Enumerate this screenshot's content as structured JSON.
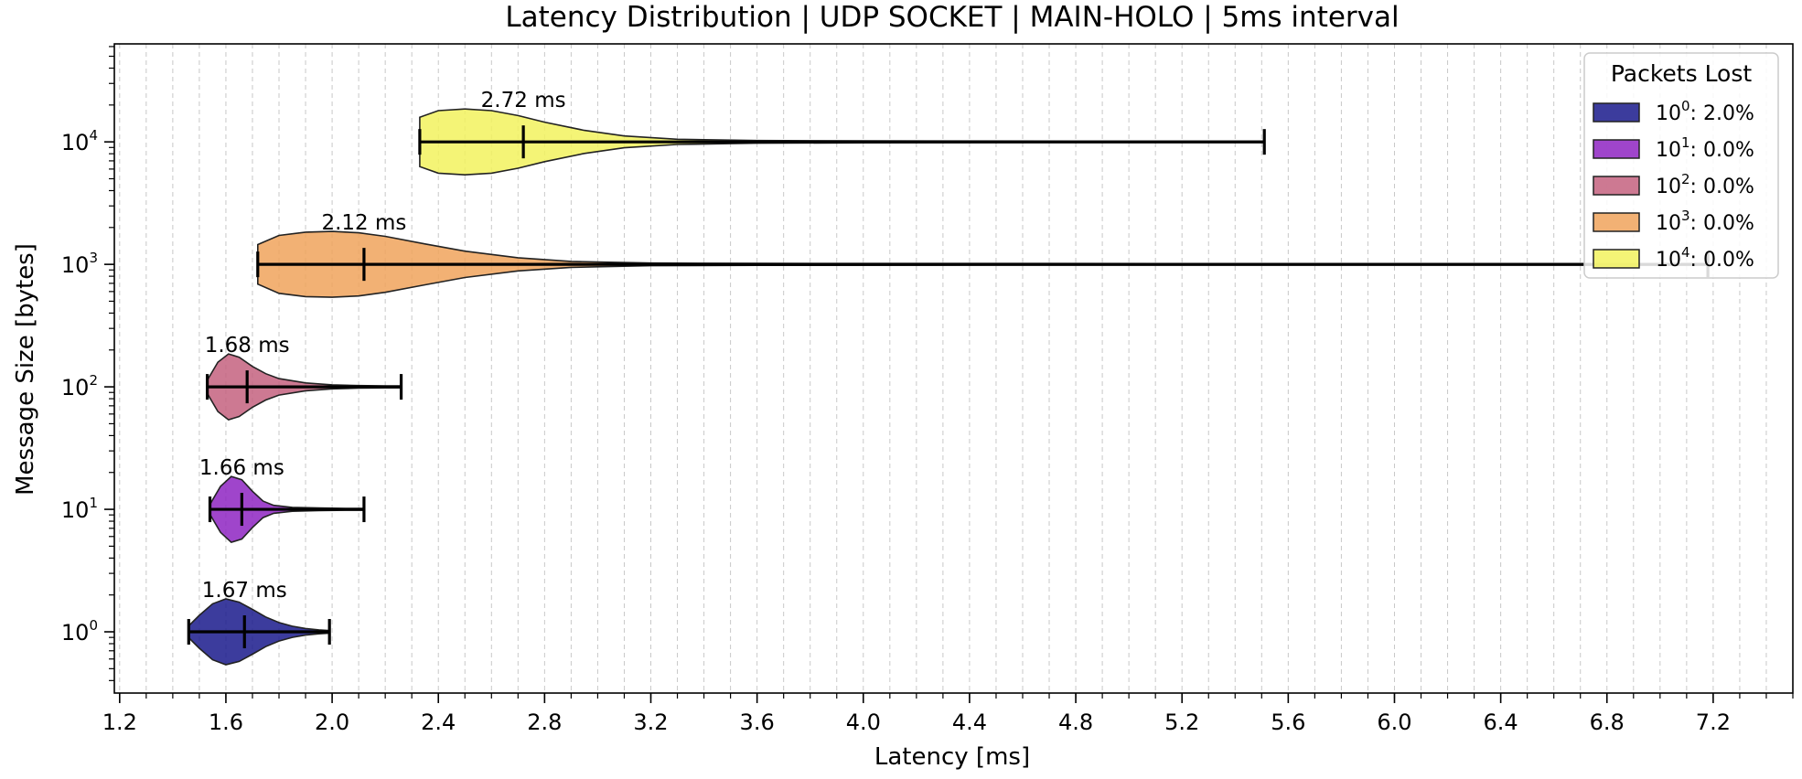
{
  "chart_data": {
    "type": "violin",
    "title": "Latency Distribution | UDP SOCKET | MAIN-HOLO | 5ms interval",
    "xlabel": "Latency [ms]",
    "ylabel": "Message Size [bytes]",
    "xlim": [
      1.18,
      7.5
    ],
    "y_scale": "log",
    "ylim_log10": [
      -0.5,
      4.8
    ],
    "xticks": [
      1.2,
      1.6,
      2.0,
      2.4,
      2.8,
      3.2,
      3.6,
      4.0,
      4.4,
      4.8,
      5.2,
      5.6,
      6.0,
      6.4,
      6.8,
      7.2
    ],
    "xticks_minor_step": 0.1,
    "grid": "vertical-dashed",
    "legend": {
      "title": "Packets Lost",
      "placement": "top-right"
    },
    "series": [
      {
        "size_exp": 0,
        "min": 1.46,
        "max": 1.99,
        "mean": 1.67,
        "mean_label": "1.67 ms",
        "packets_lost": ": 2.0%",
        "color": "#1a1a8c",
        "density_x": [
          1.46,
          1.5,
          1.55,
          1.6,
          1.65,
          1.7,
          1.75,
          1.8,
          1.85,
          1.9,
          1.95,
          1.99
        ],
        "density_w": [
          0.18,
          0.5,
          0.85,
          1.0,
          0.9,
          0.68,
          0.45,
          0.28,
          0.17,
          0.1,
          0.06,
          0.04
        ]
      },
      {
        "size_exp": 1,
        "min": 1.54,
        "max": 2.12,
        "mean": 1.66,
        "mean_label": "1.66 ms",
        "packets_lost": ": 0.0%",
        "color": "#8e24c2",
        "density_x": [
          1.54,
          1.58,
          1.62,
          1.66,
          1.7,
          1.74,
          1.78,
          1.85,
          1.95,
          2.05,
          2.12
        ],
        "density_w": [
          0.15,
          0.7,
          1.0,
          0.9,
          0.55,
          0.25,
          0.12,
          0.06,
          0.04,
          0.03,
          0.03
        ]
      },
      {
        "size_exp": 2,
        "min": 1.53,
        "max": 2.26,
        "mean": 1.68,
        "mean_label": "1.68 ms",
        "packets_lost": ": 0.0%",
        "color": "#c4627f",
        "density_x": [
          1.53,
          1.57,
          1.61,
          1.65,
          1.7,
          1.75,
          1.8,
          1.9,
          2.0,
          2.1,
          2.2,
          2.26
        ],
        "density_w": [
          0.2,
          0.75,
          1.0,
          0.9,
          0.62,
          0.4,
          0.25,
          0.12,
          0.06,
          0.04,
          0.03,
          0.03
        ]
      },
      {
        "size_exp": 3,
        "min": 1.72,
        "max": 7.18,
        "mean": 2.12,
        "mean_label": "2.12 ms",
        "packets_lost": ": 0.0%",
        "color": "#f0a35c",
        "density_x": [
          1.72,
          1.8,
          1.9,
          2.0,
          2.1,
          2.2,
          2.35,
          2.5,
          2.7,
          2.9,
          3.2,
          3.6,
          4.5,
          6.0,
          7.18
        ],
        "density_w": [
          0.6,
          0.88,
          0.98,
          1.0,
          0.96,
          0.85,
          0.62,
          0.4,
          0.2,
          0.09,
          0.04,
          0.03,
          0.025,
          0.02,
          0.02
        ]
      },
      {
        "size_exp": 4,
        "min": 2.33,
        "max": 5.51,
        "mean": 2.72,
        "mean_label": "2.72 ms",
        "packets_lost": ": 0.0%",
        "color": "#f2f25e",
        "density_x": [
          2.33,
          2.4,
          2.5,
          2.6,
          2.7,
          2.8,
          2.95,
          3.1,
          3.3,
          3.6,
          4.0,
          4.8,
          5.51
        ],
        "density_w": [
          0.75,
          0.95,
          1.0,
          0.95,
          0.8,
          0.6,
          0.35,
          0.18,
          0.08,
          0.04,
          0.03,
          0.02,
          0.02
        ]
      }
    ]
  }
}
